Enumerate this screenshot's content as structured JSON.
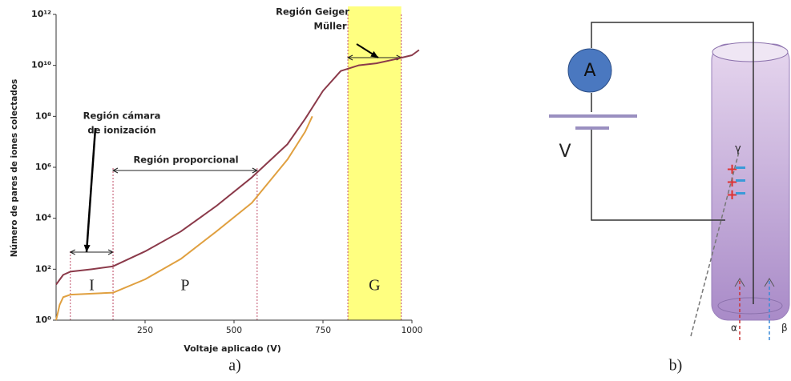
{
  "chart_data": {
    "type": "line",
    "log_y": true,
    "xlabel": "Voltaje aplicado (V)",
    "ylabel": "Número de pares de iones colectados",
    "xlim": [
      0,
      1000
    ],
    "ylim": [
      1,
      1000000000000
    ],
    "xticks": [
      250,
      500,
      750,
      1000
    ],
    "yticks": [
      {
        "value": 1,
        "label": "10⁰"
      },
      {
        "value": 100,
        "label": "10²"
      },
      {
        "value": 10000,
        "label": "10⁴"
      },
      {
        "value": 1000000,
        "label": "10⁶"
      },
      {
        "value": 100000000,
        "label": "10⁸"
      },
      {
        "value": 10000000000,
        "label": "10¹⁰"
      },
      {
        "value": 1000000000000,
        "label": "10¹²"
      }
    ],
    "series": [
      {
        "color": "#8b3a4a",
        "x": [
          0,
          20,
          40,
          100,
          160,
          250,
          350,
          450,
          550,
          650,
          700,
          750,
          800,
          850,
          900,
          950,
          1000,
          1020
        ],
        "values": [
          25,
          60,
          80,
          100,
          130,
          500,
          3000,
          30000,
          400000,
          8000000,
          80000000,
          1000000000,
          6000000000,
          10000000000,
          12000000000,
          17000000000,
          25000000000,
          40000000000
        ]
      },
      {
        "color": "#e0a040",
        "x": [
          0,
          10,
          20,
          40,
          100,
          160,
          250,
          350,
          450,
          550,
          650,
          700,
          720
        ],
        "values": [
          1,
          4,
          8,
          10,
          11,
          12,
          40,
          250,
          3000,
          40000,
          2000000,
          25000000,
          100000000
        ]
      }
    ],
    "regions": [
      {
        "label": "I",
        "x": [
          40,
          160
        ]
      },
      {
        "label": "P",
        "x": [
          160,
          565
        ]
      },
      {
        "label": "G",
        "x": [
          820,
          970
        ],
        "color": "#ffff80"
      }
    ],
    "annotations": [
      [
        "Región cámara",
        "de ionización"
      ],
      [
        "Región proporcional"
      ],
      [
        "Región Geiger",
        "Müller"
      ]
    ],
    "caption": "a)"
  },
  "diagram": {
    "ammeter": "A",
    "battery": "V",
    "gamma": "γ",
    "alpha": "α",
    "beta": "β",
    "caption": "b)"
  }
}
